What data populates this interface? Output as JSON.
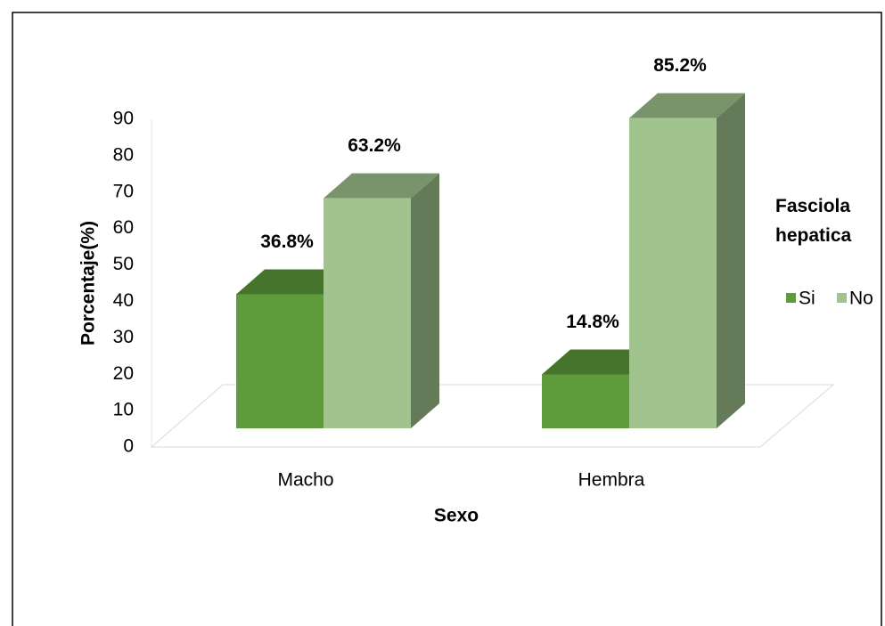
{
  "chart_data": {
    "type": "bar3d",
    "x_label": "Sexo",
    "y_label": "Porcentaje(%)",
    "categories": [
      "Macho",
      "Hembra"
    ],
    "series": [
      {
        "name": "Si",
        "color": "#5f9a3b",
        "values": [
          36.8,
          14.8
        ],
        "value_labels": [
          "36.8%",
          "14.8%"
        ]
      },
      {
        "name": "No",
        "color": "#a1c48e",
        "values": [
          63.2,
          85.2
        ],
        "value_labels": [
          "63.2%",
          "85.2%"
        ]
      }
    ],
    "ylim": [
      0,
      90
    ],
    "yticks": [
      0,
      10,
      20,
      30,
      40,
      50,
      60,
      70,
      80,
      90
    ],
    "legend_title": "Fasciola hepatica",
    "legend": "right"
  }
}
